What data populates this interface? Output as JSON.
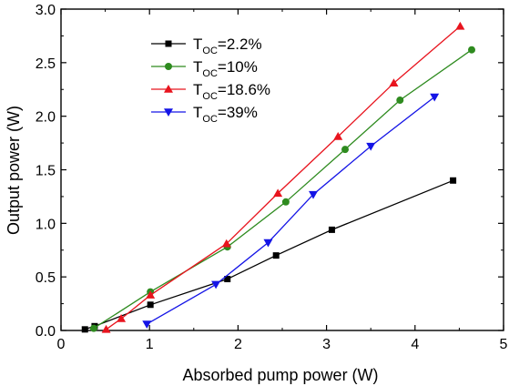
{
  "chart_data": {
    "type": "line",
    "title": "",
    "xlabel": "Absorbed pump power (W)",
    "ylabel": "Output power (W)",
    "xlim": [
      0,
      5
    ],
    "ylim": [
      0,
      3.0
    ],
    "x_ticks": [
      "0",
      "1",
      "2",
      "3",
      "4",
      "5"
    ],
    "y_ticks": [
      "0.0",
      "0.5",
      "1.0",
      "1.5",
      "2.0",
      "2.5",
      "3.0"
    ],
    "grid": false,
    "legend_position": "top-left",
    "series": [
      {
        "name": "T_OC=2.2%",
        "label_main": "T",
        "label_sub": "OC",
        "label_rest": "=2.2%",
        "color": "#000000",
        "marker": "square",
        "x": [
          0.27,
          0.38,
          1.01,
          1.88,
          2.43,
          3.06,
          4.43
        ],
        "y": [
          0.01,
          0.04,
          0.24,
          0.48,
          0.7,
          0.94,
          1.4
        ]
      },
      {
        "name": "T_OC=10%",
        "label_main": "T",
        "label_sub": "OC",
        "label_rest": "=10%",
        "color": "#2e8b1f",
        "marker": "circle",
        "x": [
          0.37,
          1.01,
          1.88,
          2.54,
          3.21,
          3.83,
          4.64
        ],
        "y": [
          0.02,
          0.36,
          0.78,
          1.2,
          1.69,
          2.15,
          2.62
        ]
      },
      {
        "name": "T_OC=18.6%",
        "label_main": "T",
        "label_sub": "OC",
        "label_rest": "=18.6%",
        "color": "#e8141e",
        "marker": "triangle-up",
        "x": [
          0.51,
          0.68,
          1.01,
          1.87,
          2.45,
          3.13,
          3.76,
          4.51
        ],
        "y": [
          0.01,
          0.11,
          0.33,
          0.81,
          1.28,
          1.81,
          2.31,
          2.84
        ]
      },
      {
        "name": "T_OC=39%",
        "label_main": "T",
        "label_sub": "OC",
        "label_rest": "=39%",
        "color": "#1414e6",
        "marker": "triangle-down",
        "x": [
          0.97,
          1.75,
          2.34,
          2.85,
          3.5,
          4.22
        ],
        "y": [
          0.06,
          0.43,
          0.82,
          1.27,
          1.72,
          2.18
        ]
      }
    ]
  }
}
